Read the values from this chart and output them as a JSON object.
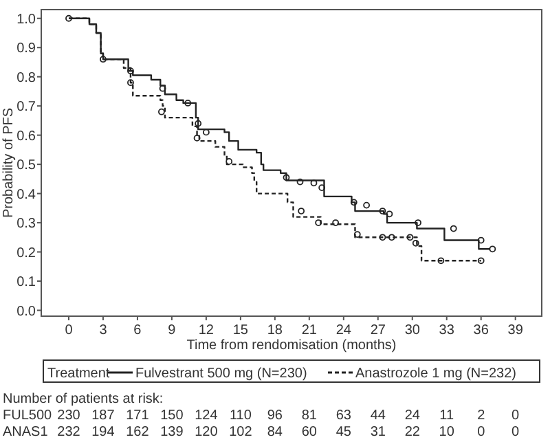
{
  "chart_data": {
    "type": "step",
    "xlabel": "Time from rendomisation (months)",
    "ylabel": "Probability of PFS",
    "legend_title": "Treatment",
    "legend": "bottom",
    "xlim": [
      -2.4,
      41.3
    ],
    "xticks": [
      0,
      3,
      6,
      9,
      12,
      15,
      18,
      21,
      24,
      27,
      30,
      33,
      36,
      39
    ],
    "ylim": [
      -0.02,
      1.03
    ],
    "yticks": [
      {
        "value": 0,
        "label": "0.0"
      },
      0.1,
      0.2,
      0.3,
      0.4,
      0.5,
      0.6,
      0.7,
      0.8,
      0.9,
      {
        "value": 1,
        "label": "1.0"
      }
    ],
    "series": [
      {
        "name": "Fulvestrant 500 mg (N=230)",
        "color": "#222222",
        "line_style": "solid",
        "x": [
          0,
          0.6,
          1.8,
          2.4,
          2.8,
          3.0,
          5.2,
          5.6,
          7.2,
          8.0,
          8.4,
          9.4,
          10.0,
          11.1,
          11.3,
          13.6,
          14.0,
          14.8,
          16.4,
          16.8,
          17.0,
          18.5,
          19.0,
          22.3,
          24.7,
          25.0,
          27.5,
          27.8,
          30.4,
          32.8,
          35.8,
          36.8
        ],
        "values": [
          1.0,
          1.0,
          0.98,
          0.95,
          0.88,
          0.86,
          0.82,
          0.805,
          0.79,
          0.77,
          0.74,
          0.72,
          0.71,
          0.66,
          0.62,
          0.61,
          0.58,
          0.55,
          0.54,
          0.5,
          0.48,
          0.47,
          0.445,
          0.39,
          0.37,
          0.34,
          0.33,
          0.3,
          0.28,
          0.24,
          0.21,
          0.21
        ]
      },
      {
        "name": "Anastrozole 1 mg (N=232)",
        "color": "#222222",
        "line_style": "dashed",
        "x": [
          0,
          0.6,
          1.8,
          2.4,
          2.8,
          3.0,
          4.8,
          5.4,
          5.6,
          8.0,
          8.2,
          8.4,
          10.8,
          11.2,
          11.4,
          12.8,
          13.6,
          13.8,
          15.2,
          16.0,
          16.2,
          16.4,
          19.1,
          19.6,
          22.0,
          25.0,
          30.4,
          30.8,
          36.0
        ],
        "values": [
          1.0,
          1.0,
          0.98,
          0.95,
          0.88,
          0.86,
          0.83,
          0.78,
          0.735,
          0.72,
          0.7,
          0.66,
          0.63,
          0.6,
          0.58,
          0.56,
          0.53,
          0.5,
          0.49,
          0.47,
          0.44,
          0.4,
          0.37,
          0.32,
          0.295,
          0.25,
          0.22,
          0.17,
          0.17
        ]
      },
      {
        "type": "scatter",
        "marker": "circle",
        "color": "#222222",
        "x": [
          0,
          3.0,
          5.4,
          8.2,
          10.4,
          11.3,
          12.0,
          19.0,
          20.2,
          21.4,
          22.1,
          24.9,
          26.0,
          27.4,
          28.0,
          30.5,
          33.6,
          36.0,
          37.0
        ],
        "values": [
          1.0,
          0.86,
          0.82,
          0.76,
          0.71,
          0.64,
          0.61,
          0.455,
          0.44,
          0.436,
          0.42,
          0.37,
          0.36,
          0.34,
          0.33,
          0.3,
          0.28,
          0.24,
          0.21
        ]
      },
      {
        "type": "scatter",
        "marker": "circle",
        "color": "#222222",
        "x": [
          5.4,
          8.1,
          11.2,
          14.0,
          20.3,
          21.8,
          23.3,
          25.2,
          27.4,
          28.2,
          29.8,
          30.3,
          32.5,
          36.0
        ],
        "values": [
          0.78,
          0.68,
          0.59,
          0.51,
          0.34,
          0.3,
          0.3,
          0.26,
          0.25,
          0.25,
          0.25,
          0.23,
          0.17,
          0.17
        ]
      }
    ],
    "annotations": [
      "Number of patients at risk:",
      "FUL500 230 187 171 150 124 110 96 81 63 44 24 11 2 0",
      "ANAS1 232 194 162 139 120 102 84 60 45 31 22 10 0 0"
    ]
  }
}
